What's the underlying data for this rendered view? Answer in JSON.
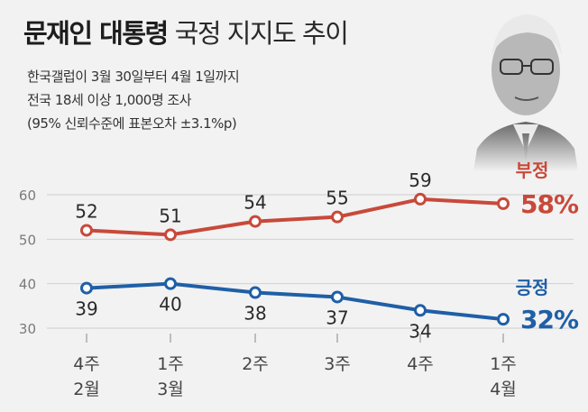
{
  "header": {
    "title_bold": "문재인 대통령",
    "title_light": "국정 지지도 추이",
    "subtitle_lines": [
      "한국갤럽이 3월 30일부터 4월 1일까지",
      "전국 18세 이상 1,000명 조사",
      "(95% 신뢰수준에 표본오차 ±3.1%p)"
    ]
  },
  "chart_data": {
    "type": "line",
    "categories": [
      "4주|2월",
      "1주|3월",
      "2주",
      "3주",
      "4주",
      "1주|4월"
    ],
    "series": [
      {
        "name": "부정",
        "values": [
          52,
          51,
          54,
          55,
          59,
          58
        ],
        "color": "#c8493a",
        "end_label": "58%"
      },
      {
        "name": "긍정",
        "values": [
          39,
          40,
          38,
          37,
          34,
          32
        ],
        "color": "#1f5fa6",
        "end_label": "32%"
      }
    ],
    "ylim": [
      30,
      60
    ],
    "yticks": [
      30,
      40,
      50,
      60
    ],
    "grid": true,
    "title": "",
    "xlabel": "",
    "ylabel": ""
  },
  "colors": {
    "background": "#f2f2f2",
    "grid": "#cfcfcf",
    "negative": "#c8493a",
    "positive": "#1f5fa6"
  },
  "icons": {
    "portrait": "president-portrait-icon"
  }
}
